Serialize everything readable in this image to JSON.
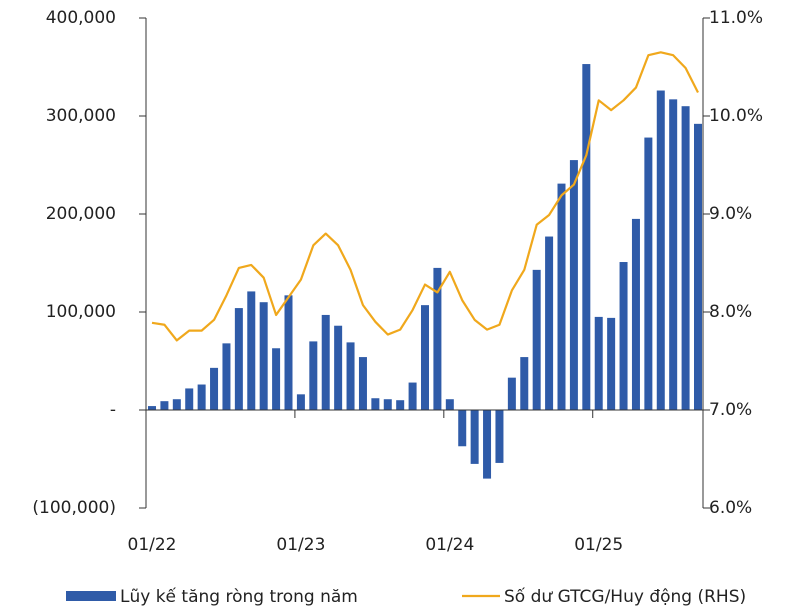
{
  "chart_data": {
    "type": "bar_line",
    "categories": [
      "01/22",
      null,
      null,
      null,
      null,
      null,
      null,
      null,
      null,
      null,
      null,
      null,
      "01/23",
      null,
      null,
      null,
      null,
      null,
      null,
      null,
      null,
      null,
      null,
      null,
      "01/24",
      null,
      null,
      null,
      null,
      null,
      null,
      null,
      null,
      null,
      null,
      null,
      "01/25",
      null,
      null,
      null,
      null,
      null,
      null,
      null,
      null
    ],
    "series": [
      {
        "name": "Lũy kế tăng ròng trong năm",
        "type": "bar",
        "color": "#2f5ba8",
        "values": [
          4000,
          9000,
          11000,
          22000,
          26000,
          43000,
          68000,
          104000,
          121000,
          110000,
          63000,
          117000,
          16000,
          70000,
          97000,
          86000,
          69000,
          54000,
          12000,
          11000,
          10000,
          28000,
          107000,
          145000,
          11000,
          -37000,
          -55000,
          -70000,
          -54000,
          33000,
          54000,
          143000,
          177000,
          231000,
          255000,
          353000,
          95000,
          94000,
          151000,
          195000,
          278000,
          326000,
          317000,
          310000,
          292000
        ]
      },
      {
        "name": "Số dư GTCG/Huy động (RHS)",
        "type": "line",
        "axis": "y2",
        "color": "#f0a81c",
        "values": [
          7.89,
          7.87,
          7.71,
          7.81,
          7.81,
          7.92,
          8.17,
          8.45,
          8.48,
          8.35,
          7.97,
          8.15,
          8.33,
          8.68,
          8.8,
          8.68,
          8.43,
          8.07,
          7.9,
          7.77,
          7.82,
          8.02,
          8.28,
          8.2,
          8.41,
          8.12,
          7.92,
          7.82,
          7.87,
          8.22,
          8.43,
          8.89,
          8.99,
          9.19,
          9.3,
          9.6,
          10.16,
          10.06,
          10.16,
          10.29,
          10.62,
          10.65,
          10.62,
          10.49,
          10.24
        ]
      }
    ],
    "ylim": [
      -100000,
      400000
    ],
    "yticks": [
      {
        "value": -100000,
        "label": "(100,000)"
      },
      {
        "value": 0,
        "label": "-"
      },
      {
        "value": 100000,
        "label": "100,000"
      },
      {
        "value": 200000,
        "label": "200,000"
      },
      {
        "value": 300000,
        "label": "300,000"
      },
      {
        "value": 400000,
        "label": "400,000"
      }
    ],
    "y2lim": [
      6,
      11
    ],
    "y2ticks": [
      {
        "value": 6,
        "label": "6.0%"
      },
      {
        "value": 7,
        "label": "7.0%"
      },
      {
        "value": 8,
        "label": "8.0%"
      },
      {
        "value": 9,
        "label": "9.0%"
      },
      {
        "value": 10,
        "label": "10.0%"
      },
      {
        "value": 11,
        "label": "11.0%"
      }
    ],
    "legend": "bottom"
  }
}
